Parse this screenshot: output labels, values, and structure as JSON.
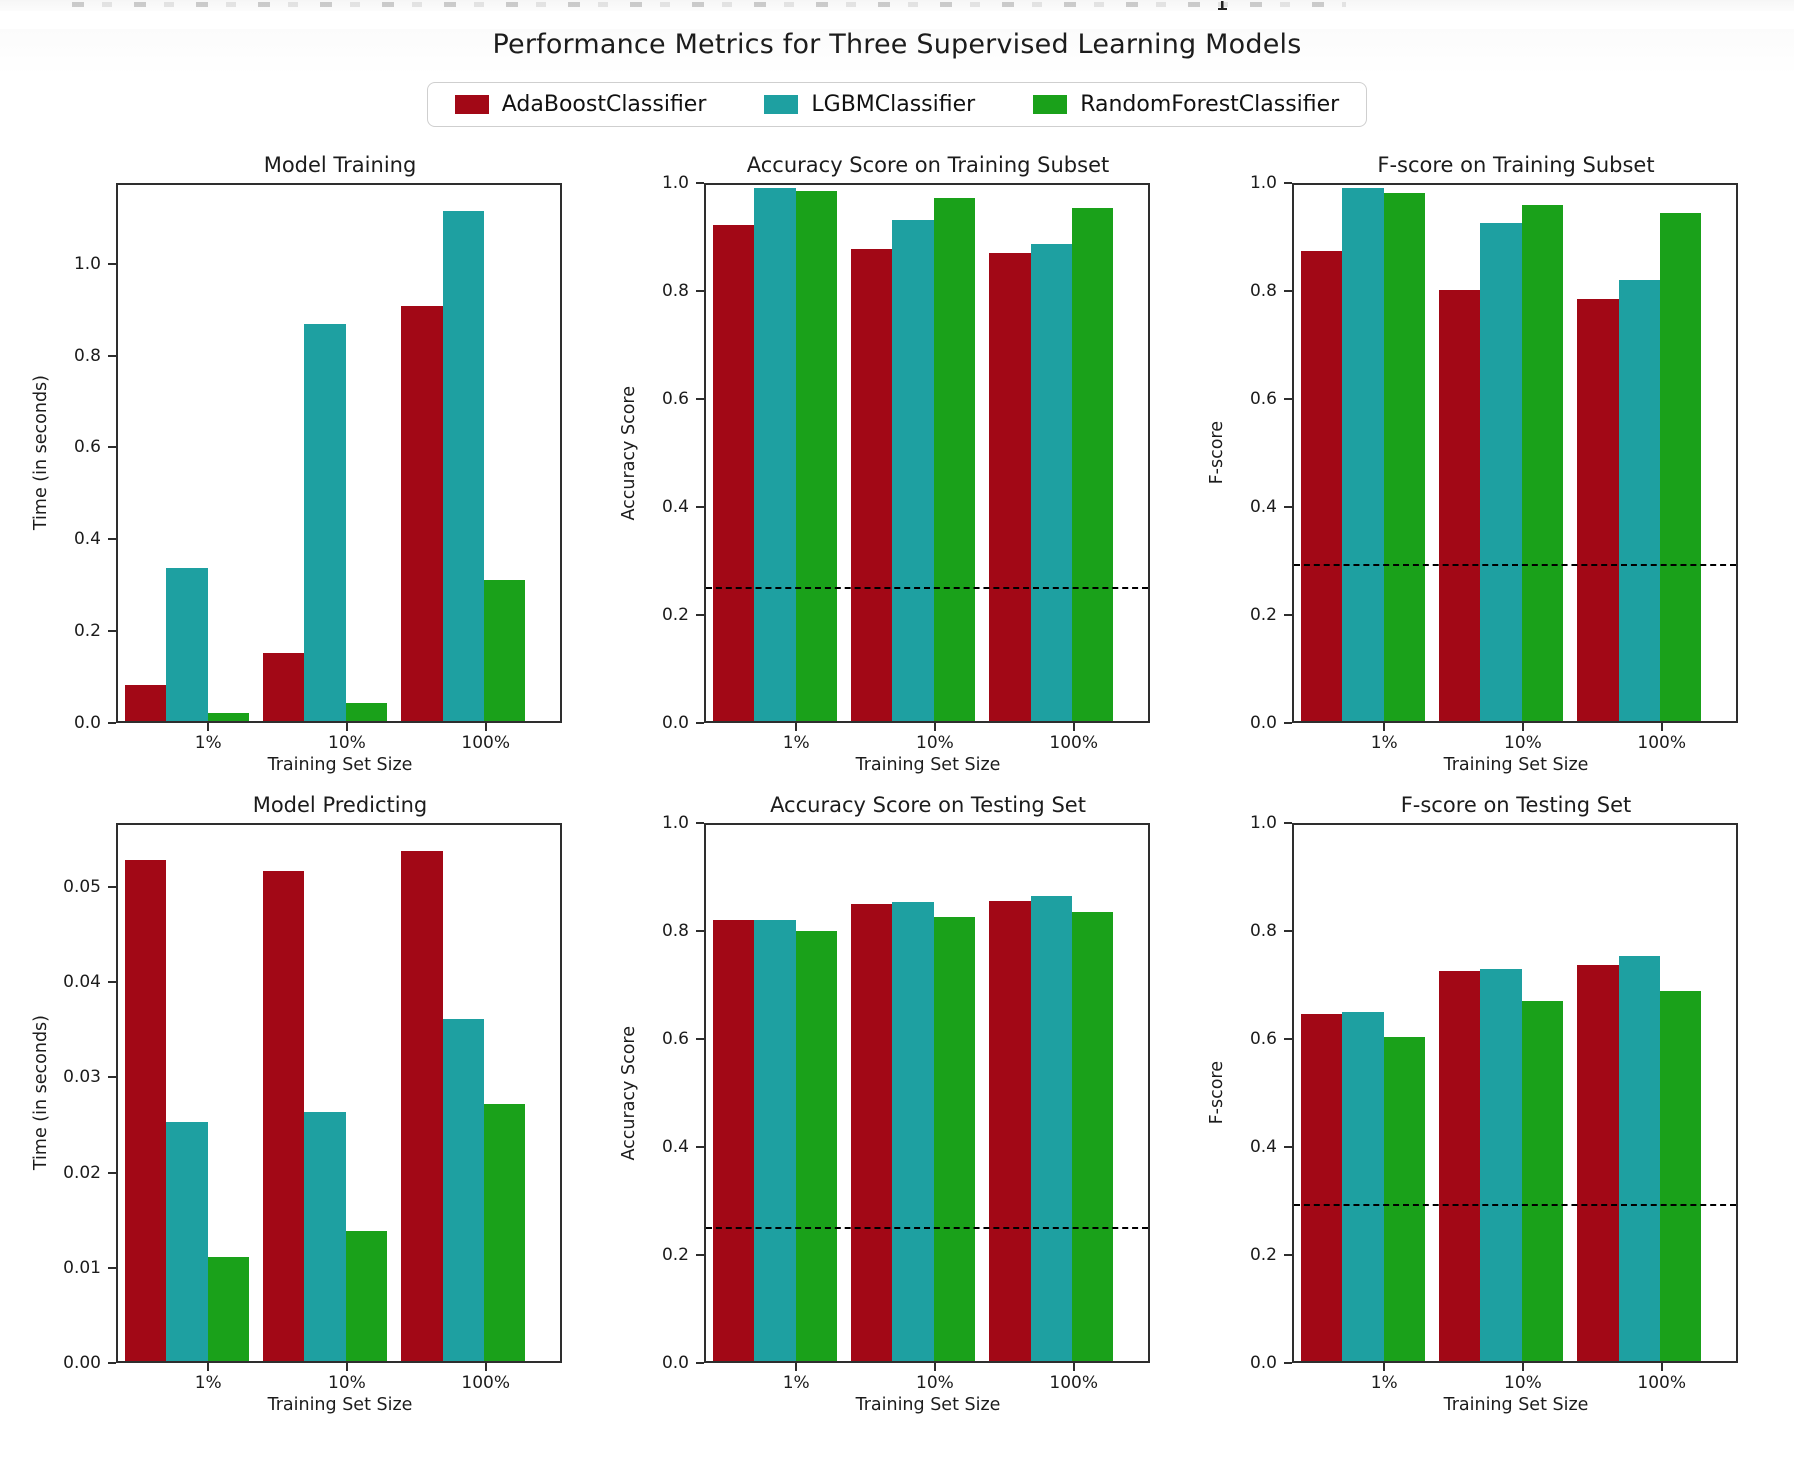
{
  "figure": {
    "title": "Performance Metrics for Three Supervised Learning Models"
  },
  "legend": {
    "position": "upper-center",
    "items": [
      {
        "label": "AdaBoostClassifier",
        "color": "#a20816"
      },
      {
        "label": "LGBMClassifier",
        "color": "#1ea0a1"
      },
      {
        "label": "RandomForestClassifier",
        "color": "#1aa11a"
      }
    ]
  },
  "chart_data": [
    {
      "id": "model-training",
      "type": "bar",
      "title": "Model Training",
      "xlabel": "Training Set Size",
      "ylabel": "Time (in seconds)",
      "categories": [
        "1%",
        "10%",
        "100%"
      ],
      "series": [
        {
          "name": "AdaBoostClassifier",
          "color": "#a20816",
          "values": [
            0.08,
            0.15,
            0.91
          ]
        },
        {
          "name": "LGBMClassifier",
          "color": "#1ea0a1",
          "values": [
            0.335,
            0.87,
            1.12
          ]
        },
        {
          "name": "RandomForestClassifier",
          "color": "#1aa11a",
          "values": [
            0.018,
            0.04,
            0.31
          ]
        }
      ],
      "ylim": [
        0,
        1.176
      ],
      "yticks": [
        0.0,
        0.2,
        0.4,
        0.6,
        0.8,
        1.0
      ],
      "ytick_labels": [
        "0.0",
        "0.2",
        "0.4",
        "0.6",
        "0.8",
        "1.0"
      ],
      "xlim": [
        -0.2,
        3.0
      ],
      "bar_width": 0.3,
      "xtick_positions": [
        0.45,
        1.45,
        2.45
      ],
      "baseline": null,
      "grid": false
    },
    {
      "id": "accuracy-training",
      "type": "bar",
      "title": "Accuracy Score on Training Subset",
      "xlabel": "Training Set Size",
      "ylabel": "Accuracy Score",
      "categories": [
        "1%",
        "10%",
        "100%"
      ],
      "series": [
        {
          "name": "AdaBoostClassifier",
          "color": "#a20816",
          "values": [
            0.925,
            0.88,
            0.873
          ]
        },
        {
          "name": "LGBMClassifier",
          "color": "#1ea0a1",
          "values": [
            0.995,
            0.935,
            0.89
          ]
        },
        {
          "name": "RandomForestClassifier",
          "color": "#1aa11a",
          "values": [
            0.988,
            0.975,
            0.958
          ]
        }
      ],
      "ylim": [
        0,
        1.0
      ],
      "yticks": [
        0.0,
        0.2,
        0.4,
        0.6,
        0.8,
        1.0
      ],
      "ytick_labels": [
        "0.0",
        "0.2",
        "0.4",
        "0.6",
        "0.8",
        "1.0"
      ],
      "xlim": [
        -0.2,
        3.0
      ],
      "bar_width": 0.3,
      "xtick_positions": [
        0.45,
        1.45,
        2.45
      ],
      "baseline": 0.248,
      "grid": false
    },
    {
      "id": "fscore-training",
      "type": "bar",
      "title": "F-score on Training Subset",
      "xlabel": "Training Set Size",
      "ylabel": "F-score",
      "categories": [
        "1%",
        "10%",
        "100%"
      ],
      "series": [
        {
          "name": "AdaBoostClassifier",
          "color": "#a20816",
          "values": [
            0.876,
            0.805,
            0.788
          ]
        },
        {
          "name": "LGBMClassifier",
          "color": "#1ea0a1",
          "values": [
            0.995,
            0.93,
            0.822
          ]
        },
        {
          "name": "RandomForestClassifier",
          "color": "#1aa11a",
          "values": [
            0.986,
            0.962,
            0.947
          ]
        }
      ],
      "ylim": [
        0,
        1.0
      ],
      "yticks": [
        0.0,
        0.2,
        0.4,
        0.6,
        0.8,
        1.0
      ],
      "ytick_labels": [
        "0.0",
        "0.2",
        "0.4",
        "0.6",
        "0.8",
        "1.0"
      ],
      "xlim": [
        -0.2,
        3.0
      ],
      "bar_width": 0.3,
      "xtick_positions": [
        0.45,
        1.45,
        2.45
      ],
      "baseline": 0.292,
      "grid": false
    },
    {
      "id": "model-predicting",
      "type": "bar",
      "title": "Model Predicting",
      "xlabel": "Training Set Size",
      "ylabel": "Time (in seconds)",
      "categories": [
        "1%",
        "10%",
        "100%"
      ],
      "series": [
        {
          "name": "AdaBoostClassifier",
          "color": "#a20816",
          "values": [
            0.053,
            0.0518,
            0.054
          ]
        },
        {
          "name": "LGBMClassifier",
          "color": "#1ea0a1",
          "values": [
            0.0253,
            0.0263,
            0.0362
          ]
        },
        {
          "name": "RandomForestClassifier",
          "color": "#1aa11a",
          "values": [
            0.011,
            0.0138,
            0.0272
          ]
        }
      ],
      "ylim": [
        0,
        0.0567
      ],
      "yticks": [
        0.0,
        0.01,
        0.02,
        0.03,
        0.04,
        0.05
      ],
      "ytick_labels": [
        "0.00",
        "0.01",
        "0.02",
        "0.03",
        "0.04",
        "0.05"
      ],
      "xlim": [
        -0.2,
        3.0
      ],
      "bar_width": 0.3,
      "xtick_positions": [
        0.45,
        1.45,
        2.45
      ],
      "baseline": null,
      "grid": false
    },
    {
      "id": "accuracy-testing",
      "type": "bar",
      "title": "Accuracy Score on Testing Set",
      "xlabel": "Training Set Size",
      "ylabel": "Accuracy Score",
      "categories": [
        "1%",
        "10%",
        "100%"
      ],
      "series": [
        {
          "name": "AdaBoostClassifier",
          "color": "#a20816",
          "values": [
            0.823,
            0.853,
            0.858
          ]
        },
        {
          "name": "LGBMClassifier",
          "color": "#1ea0a1",
          "values": [
            0.823,
            0.856,
            0.868
          ]
        },
        {
          "name": "RandomForestClassifier",
          "color": "#1aa11a",
          "values": [
            0.803,
            0.829,
            0.838
          ]
        }
      ],
      "ylim": [
        0,
        1.0
      ],
      "yticks": [
        0.0,
        0.2,
        0.4,
        0.6,
        0.8,
        1.0
      ],
      "ytick_labels": [
        "0.0",
        "0.2",
        "0.4",
        "0.6",
        "0.8",
        "1.0"
      ],
      "xlim": [
        -0.2,
        3.0
      ],
      "bar_width": 0.3,
      "xtick_positions": [
        0.45,
        1.45,
        2.45
      ],
      "baseline": 0.248,
      "grid": false
    },
    {
      "id": "fscore-testing",
      "type": "bar",
      "title": "F-score on Testing Set",
      "xlabel": "Training Set Size",
      "ylabel": "F-score",
      "categories": [
        "1%",
        "10%",
        "100%"
      ],
      "series": [
        {
          "name": "AdaBoostClassifier",
          "color": "#a20816",
          "values": [
            0.648,
            0.728,
            0.738
          ]
        },
        {
          "name": "LGBMClassifier",
          "color": "#1ea0a1",
          "values": [
            0.652,
            0.732,
            0.755
          ]
        },
        {
          "name": "RandomForestClassifier",
          "color": "#1aa11a",
          "values": [
            0.605,
            0.671,
            0.69
          ]
        }
      ],
      "ylim": [
        0,
        1.0
      ],
      "yticks": [
        0.0,
        0.2,
        0.4,
        0.6,
        0.8,
        1.0
      ],
      "ytick_labels": [
        "0.0",
        "0.2",
        "0.4",
        "0.6",
        "0.8",
        "1.0"
      ],
      "xlim": [
        -0.2,
        3.0
      ],
      "bar_width": 0.3,
      "xtick_positions": [
        0.45,
        1.45,
        2.45
      ],
      "baseline": 0.292,
      "grid": false
    }
  ]
}
